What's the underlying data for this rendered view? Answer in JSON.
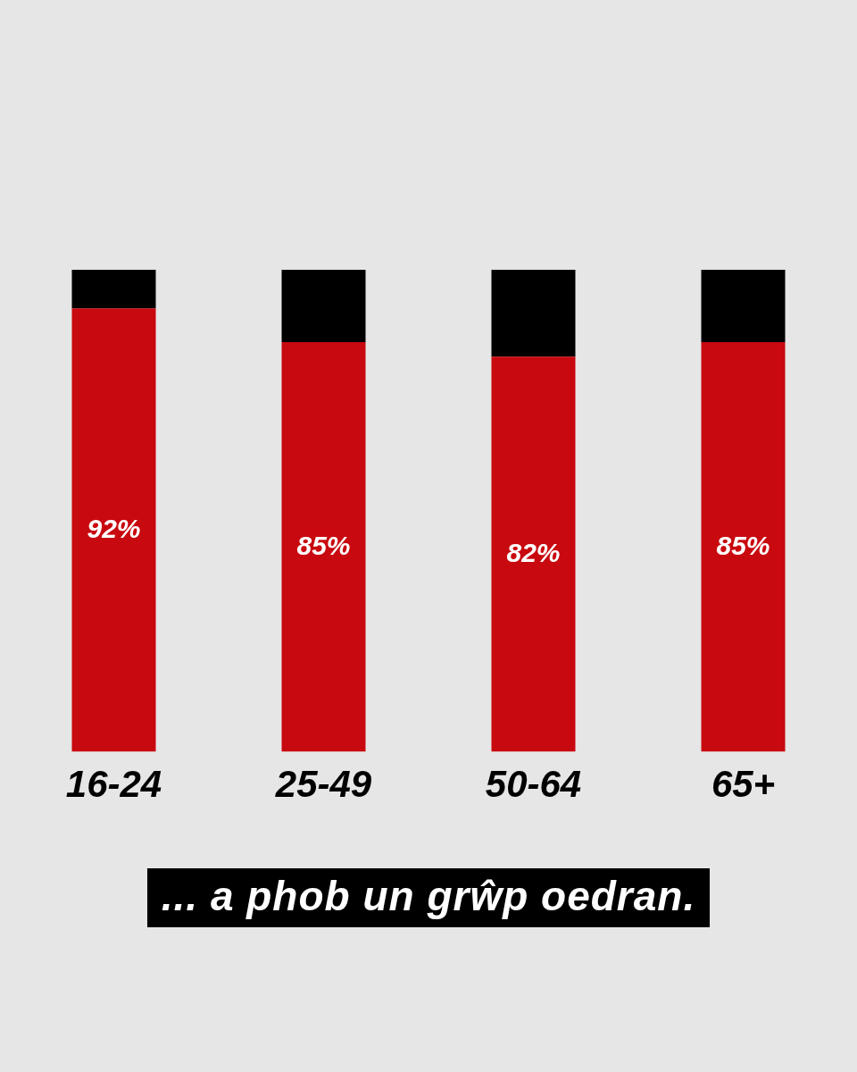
{
  "chart_data": {
    "type": "bar",
    "stacked": true,
    "categories": [
      "16-24",
      "25-49",
      "50-64",
      "65+"
    ],
    "series": [
      {
        "color": "#c8090f",
        "values": [
          92,
          85,
          82,
          85
        ],
        "value_labels": [
          "92%",
          "85%",
          "82%",
          "85%"
        ]
      },
      {
        "color": "#000000",
        "values": [
          8,
          15,
          18,
          15
        ]
      }
    ],
    "ylim": [
      0,
      100
    ],
    "tick_labels": "x",
    "legend": false,
    "annotations": [
      "... a phob un grŵp oedran."
    ]
  }
}
